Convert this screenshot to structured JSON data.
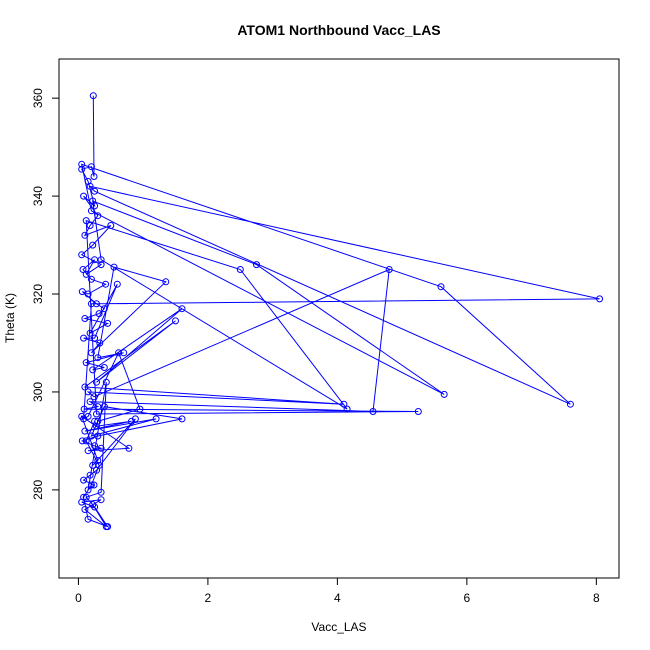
{
  "chart_data": {
    "type": "line",
    "title": "ATOM1 Northbound Vacc_LAS",
    "xlabel": "Vacc_LAS",
    "ylabel": "Theta (K)",
    "xlim": [
      -0.3,
      8.35
    ],
    "ylim": [
      262,
      368
    ],
    "xticks": [
      0,
      2,
      4,
      6,
      8
    ],
    "yticks": [
      280,
      300,
      320,
      340,
      360
    ],
    "x_tick_labels": [
      "0",
      "2",
      "4",
      "6",
      "8"
    ],
    "y_tick_labels": [
      "280",
      "300",
      "320",
      "340",
      "360"
    ],
    "grid": false,
    "legend": "none",
    "series_color": "#0000ff",
    "markers": "open-circle",
    "series": [
      {
        "x": [
          0.23,
          0.24,
          0.2,
          0.05,
          0.15,
          0.25,
          0.08,
          0.3,
          0.18,
          0.1,
          0.5,
          0.22,
          0.05,
          0.35,
          0.12,
          0.25,
          0.07,
          0.2,
          0.42,
          0.15,
          0.06,
          0.28,
          0.4,
          0.32,
          0.1,
          0.45,
          0.18,
          0.6,
          0.25,
          0.08,
          0.33,
          0.2,
          1.35,
          0.55,
          0.3,
          0.7,
          0.12,
          0.4,
          0.22,
          1.6,
          0.28,
          1.5,
          0.1,
          4.1,
          0.15,
          0.24,
          4.8,
          4.55,
          0.18,
          0.3,
          0.09,
          5.25,
          0.28,
          0.12,
          2.5,
          4.15,
          0.35,
          0.22,
          2.75,
          5.65,
          0.2,
          0.05,
          5.6,
          7.6,
          0.25,
          0.18,
          8.05,
          0.2,
          0.08,
          0.15,
          0.62,
          0.95,
          0.3,
          0.28,
          0.82,
          0.1,
          1.2,
          0.2,
          0.4,
          1.6,
          0.3,
          0.06,
          0.25,
          0.35,
          0.15,
          0.78,
          0.05,
          0.3,
          0.22,
          0.88,
          0.28,
          0.18,
          0.08,
          0.24,
          0.15,
          0.43,
          0.35,
          0.12,
          0.22,
          0.43,
          0.1,
          0.35,
          0.05,
          0.25,
          0.45,
          0.15,
          0.08,
          0.2,
          0.32,
          0.12,
          0.25
        ],
        "y": [
          360.5,
          344.0,
          346.0,
          345.5,
          343.0,
          338.0,
          340.0,
          336.0,
          334.0,
          332.0,
          334.0,
          330.0,
          328.0,
          326.0,
          324.0,
          327.0,
          325.0,
          323.0,
          322.0,
          320.0,
          320.5,
          318.0,
          317.0,
          316.0,
          315.0,
          314.0,
          312.0,
          322.0,
          311.0,
          311.0,
          310.0,
          308.0,
          322.5,
          325.5,
          307.0,
          308.0,
          306.0,
          305.0,
          304.5,
          317.0,
          302.0,
          314.5,
          301.0,
          297.5,
          300.0,
          299.0,
          325.0,
          296.0,
          298.0,
          297.0,
          296.5,
          296.0,
          295.5,
          335.0,
          325.0,
          296.5,
          327.0,
          339.0,
          326.0,
          299.5,
          337.0,
          346.5,
          321.5,
          297.5,
          341.0,
          342.0,
          319.0,
          318.0,
          294.5,
          295.0,
          308.0,
          296.5,
          294.0,
          293.0,
          294.0,
          292.0,
          294.5,
          291.0,
          297.0,
          294.5,
          291.0,
          290.0,
          289.0,
          288.5,
          288.0,
          288.5,
          295.0,
          286.0,
          285.0,
          294.5,
          284.0,
          283.0,
          282.0,
          281.0,
          280.0,
          302.0,
          279.5,
          278.5,
          277.0,
          272.5,
          276.0,
          278.0,
          277.5,
          276.5,
          272.5,
          274.0,
          278.5,
          281.0,
          285.0,
          290.0,
          294.0
        ]
      }
    ]
  }
}
